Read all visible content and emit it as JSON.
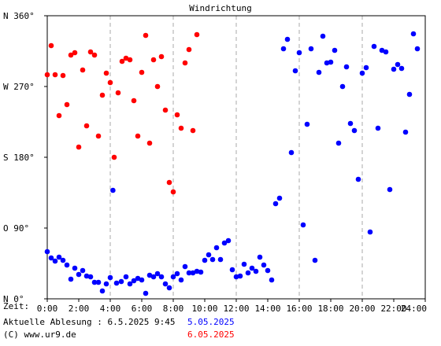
{
  "chart_data": {
    "type": "scatter",
    "title": "Windrichtung",
    "x_range": [
      "0:00",
      "24:00"
    ],
    "x_ticks": [
      "0:00",
      "2:00",
      "4:00",
      "6:00",
      "8:00",
      "10:00",
      "12:00",
      "14:00",
      "16:00",
      "18:00",
      "20:00",
      "22:00",
      "24:00"
    ],
    "x_prefix": "Zeit:",
    "ylim": [
      0,
      360
    ],
    "y_ticks": [
      {
        "value": 0,
        "label": "N  0°"
      },
      {
        "value": 90,
        "label": "O  90°"
      },
      {
        "value": 180,
        "label": "S 180°"
      },
      {
        "value": 270,
        "label": "W 270°"
      },
      {
        "value": 360,
        "label": "N 360°"
      }
    ],
    "grid": "vertical dashed every 4h",
    "series": [
      {
        "name": "5.05.2025",
        "color": "#0000ff",
        "points": [
          [
            0.0,
            60
          ],
          [
            0.25,
            52
          ],
          [
            0.5,
            48
          ],
          [
            0.75,
            53
          ],
          [
            1.0,
            49
          ],
          [
            1.25,
            43
          ],
          [
            1.5,
            25
          ],
          [
            1.75,
            39
          ],
          [
            2.0,
            31
          ],
          [
            2.25,
            36
          ],
          [
            2.5,
            29
          ],
          [
            2.75,
            28
          ],
          [
            3.0,
            21
          ],
          [
            3.25,
            21
          ],
          [
            3.5,
            10
          ],
          [
            3.75,
            19
          ],
          [
            4.0,
            27
          ],
          [
            4.17,
            138
          ],
          [
            4.4,
            20
          ],
          [
            4.7,
            22
          ],
          [
            5.0,
            28
          ],
          [
            5.25,
            19
          ],
          [
            5.5,
            23
          ],
          [
            5.75,
            26
          ],
          [
            6.0,
            24
          ],
          [
            6.25,
            7
          ],
          [
            6.5,
            30
          ],
          [
            6.75,
            28
          ],
          [
            7.0,
            32
          ],
          [
            7.25,
            28
          ],
          [
            7.5,
            19
          ],
          [
            7.75,
            14
          ],
          [
            8.0,
            28
          ],
          [
            8.25,
            32
          ],
          [
            8.5,
            24
          ],
          [
            8.75,
            41
          ],
          [
            9.0,
            33
          ],
          [
            9.25,
            33
          ],
          [
            9.5,
            35
          ],
          [
            9.75,
            34
          ],
          [
            10.0,
            49
          ],
          [
            10.25,
            56
          ],
          [
            10.5,
            50
          ],
          [
            10.75,
            65
          ],
          [
            11.0,
            50
          ],
          [
            11.25,
            71
          ],
          [
            11.5,
            74
          ],
          [
            11.75,
            37
          ],
          [
            12.0,
            28
          ],
          [
            12.25,
            29
          ],
          [
            12.5,
            44
          ],
          [
            12.75,
            33
          ],
          [
            13.0,
            39
          ],
          [
            13.25,
            35
          ],
          [
            13.5,
            53
          ],
          [
            13.75,
            43
          ],
          [
            14.0,
            36
          ],
          [
            14.25,
            24
          ],
          [
            14.5,
            121
          ],
          [
            14.75,
            128
          ],
          [
            15.0,
            318
          ],
          [
            15.25,
            330
          ],
          [
            15.5,
            186
          ],
          [
            15.75,
            290
          ],
          [
            16.0,
            313
          ],
          [
            16.25,
            94
          ],
          [
            16.5,
            222
          ],
          [
            16.75,
            318
          ],
          [
            17.0,
            49
          ],
          [
            17.25,
            288
          ],
          [
            17.5,
            334
          ],
          [
            17.75,
            300
          ],
          [
            18.0,
            301
          ],
          [
            18.25,
            316
          ],
          [
            18.5,
            198
          ],
          [
            18.75,
            270
          ],
          [
            19.0,
            295
          ],
          [
            19.25,
            223
          ],
          [
            19.5,
            214
          ],
          [
            19.75,
            152
          ],
          [
            20.0,
            287
          ],
          [
            20.25,
            294
          ],
          [
            20.5,
            85
          ],
          [
            20.75,
            321
          ],
          [
            21.0,
            217
          ],
          [
            21.25,
            316
          ],
          [
            21.5,
            314
          ],
          [
            21.75,
            139
          ],
          [
            22.0,
            292
          ],
          [
            22.25,
            298
          ],
          [
            22.5,
            293
          ],
          [
            22.75,
            212
          ],
          [
            23.0,
            260
          ],
          [
            23.25,
            337
          ],
          [
            23.5,
            318
          ]
        ]
      },
      {
        "name": "6.05.2025",
        "color": "#ff0000",
        "points": [
          [
            0.0,
            285
          ],
          [
            0.25,
            322
          ],
          [
            0.5,
            285
          ],
          [
            0.75,
            233
          ],
          [
            1.0,
            284
          ],
          [
            1.25,
            247
          ],
          [
            1.5,
            310
          ],
          [
            1.75,
            313
          ],
          [
            2.0,
            193
          ],
          [
            2.25,
            291
          ],
          [
            2.5,
            220
          ],
          [
            2.75,
            314
          ],
          [
            3.0,
            310
          ],
          [
            3.25,
            207
          ],
          [
            3.5,
            259
          ],
          [
            3.75,
            287
          ],
          [
            4.0,
            275
          ],
          [
            4.25,
            180
          ],
          [
            4.5,
            262
          ],
          [
            4.75,
            302
          ],
          [
            5.0,
            306
          ],
          [
            5.25,
            304
          ],
          [
            5.5,
            252
          ],
          [
            5.75,
            207
          ],
          [
            6.0,
            288
          ],
          [
            6.25,
            335
          ],
          [
            6.5,
            198
          ],
          [
            6.75,
            304
          ],
          [
            7.0,
            270
          ],
          [
            7.25,
            308
          ],
          [
            7.5,
            240
          ],
          [
            7.75,
            148
          ],
          [
            8.0,
            136
          ],
          [
            8.25,
            234
          ],
          [
            8.5,
            217
          ],
          [
            8.75,
            300
          ],
          [
            9.0,
            317
          ],
          [
            9.25,
            214
          ],
          [
            9.5,
            336
          ]
        ]
      }
    ]
  },
  "footer": {
    "line1": "Aktuelle Ablesung : 6.5.2025 9:45",
    "line2": "(C) www.ur9.de"
  }
}
